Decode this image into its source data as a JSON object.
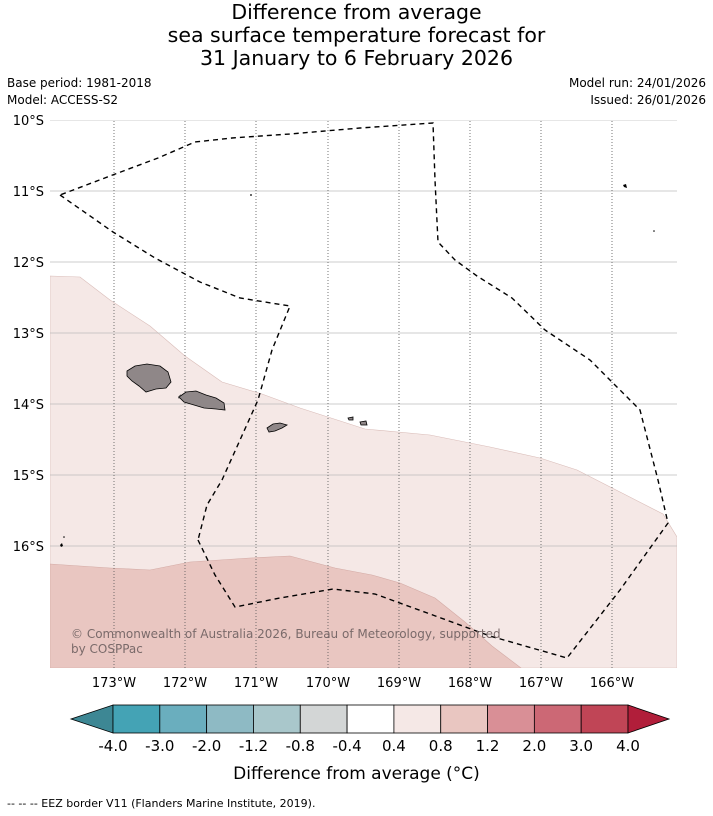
{
  "title": {
    "line1": "Difference from average",
    "line2": "sea surface temperature forecast for",
    "line3": "31 January to 6 February 2026"
  },
  "meta": {
    "base_period": "Base period: 1981-2018",
    "model": "Model: ACCESS-S2",
    "model_run": "Model run: 24/01/2026",
    "issued": "Issued: 26/01/2026"
  },
  "map": {
    "lat_labels": [
      "10°S",
      "11°S",
      "12°S",
      "13°S",
      "14°S",
      "15°S",
      "16°S"
    ],
    "lon_labels": [
      "173°W",
      "172°W",
      "171°W",
      "170°W",
      "169°W",
      "168°W",
      "167°W",
      "166°W"
    ],
    "copyright_line1": "© Commonwealth of Australia 2026, Bureau of Meteorology, supported",
    "copyright_line2": "by COSPPac",
    "colors": {
      "band_0_4_to_0_8": "#f5e8e6",
      "band_0_8_to_1_2": "#e9c6c1",
      "land": "#8f8788",
      "eez_line": "#000000"
    }
  },
  "colorbar": {
    "labels": [
      "-4.0",
      "-3.0",
      "-2.0",
      "-1.2",
      "-0.8",
      "-0.4",
      "0.4",
      "0.8",
      "1.2",
      "2.0",
      "3.0",
      "4.0"
    ],
    "under_color": "#3d8794",
    "over_color": "#b11e3a",
    "colors": [
      "#44a3b5",
      "#6aaebe",
      "#8ebac4",
      "#a9c7cb",
      "#d3d6d6",
      "#ffffff",
      "#f5e8e6",
      "#e9c6c1",
      "#d98f96",
      "#cc6875",
      "#c04556"
    ],
    "title": "Difference from average (°C)"
  },
  "footnote": "-- -- -- EEZ border V11 (Flanders Marine Institute, 2019)."
}
